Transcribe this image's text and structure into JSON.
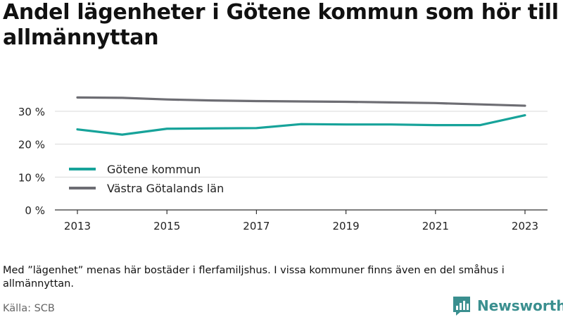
{
  "title": "Andel lägenheter i Götene kommun som hör till allmännyttan",
  "note": "Med ”lägenhet” menas här bostäder i flerfamiljshus. I vissa kommuner finns även en del småhus i allmännyttan.",
  "source": "Källa: SCB",
  "brand": "Newsworthy",
  "colors": {
    "gotene": "#17a39a",
    "vastra": "#6d6d73",
    "brand": "#3a8f8f",
    "grid": "#d9d9d9",
    "axis": "#333333"
  },
  "chart_data": {
    "type": "line",
    "x": [
      2013,
      2014,
      2015,
      2016,
      2017,
      2018,
      2019,
      2020,
      2021,
      2022,
      2023
    ],
    "xticks": [
      "2013",
      "2015",
      "2017",
      "2019",
      "2021",
      "2023"
    ],
    "yticks": [
      "0 %",
      "10 %",
      "20 %",
      "30 %"
    ],
    "ylim": [
      0,
      36
    ],
    "grid": "horizontal",
    "legend_position": "bottom-left",
    "series": [
      {
        "name": "Götene kommun",
        "color": "#17a39a",
        "values": [
          24.5,
          22.9,
          24.7,
          24.8,
          24.9,
          26.1,
          26.0,
          26.0,
          25.8,
          25.8,
          28.8
        ]
      },
      {
        "name": "Västra Götalands län",
        "color": "#6d6d73",
        "values": [
          34.2,
          34.1,
          33.6,
          33.3,
          33.1,
          33.0,
          32.9,
          32.7,
          32.5,
          32.1,
          31.7
        ]
      }
    ]
  }
}
